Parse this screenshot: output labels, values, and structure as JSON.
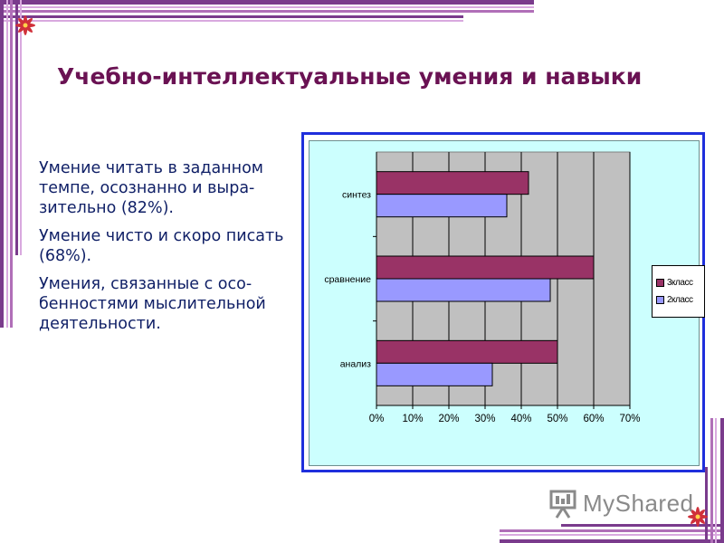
{
  "slide": {
    "title": "Учебно-интеллектуальные умения и навыки",
    "bullets": [
      "Умение читать в заданном темпе,  осознанно и выра-зительно (82%).",
      "Умение чисто и скоро писать (68%).",
      "Умения, связанные с осо-бенностями мыслительной деятельности."
    ],
    "watermark": "MyShared",
    "colors": {
      "title": "#6a1253",
      "text": "#0f1f66",
      "frame": "#1f2fdc",
      "plot_bg": "#c0c0c0",
      "chart_bg": "#ccfffe",
      "decor_purple": "#7a3b8c",
      "decor_red": "#d0303a"
    }
  },
  "chart_data": {
    "type": "bar",
    "orientation": "horizontal",
    "categories": [
      "синтез",
      "сравнение",
      "анализ"
    ],
    "series": [
      {
        "name": "3класс",
        "color": "#993366",
        "values": [
          42,
          60,
          50
        ]
      },
      {
        "name": "2класс",
        "color": "#9999ff",
        "values": [
          36,
          48,
          32
        ]
      }
    ],
    "x_ticks": [
      "0%",
      "10%",
      "20%",
      "30%",
      "40%",
      "50%",
      "60%",
      "70%"
    ],
    "xlim": [
      0,
      70
    ],
    "grid": true,
    "legend_position": "right"
  }
}
